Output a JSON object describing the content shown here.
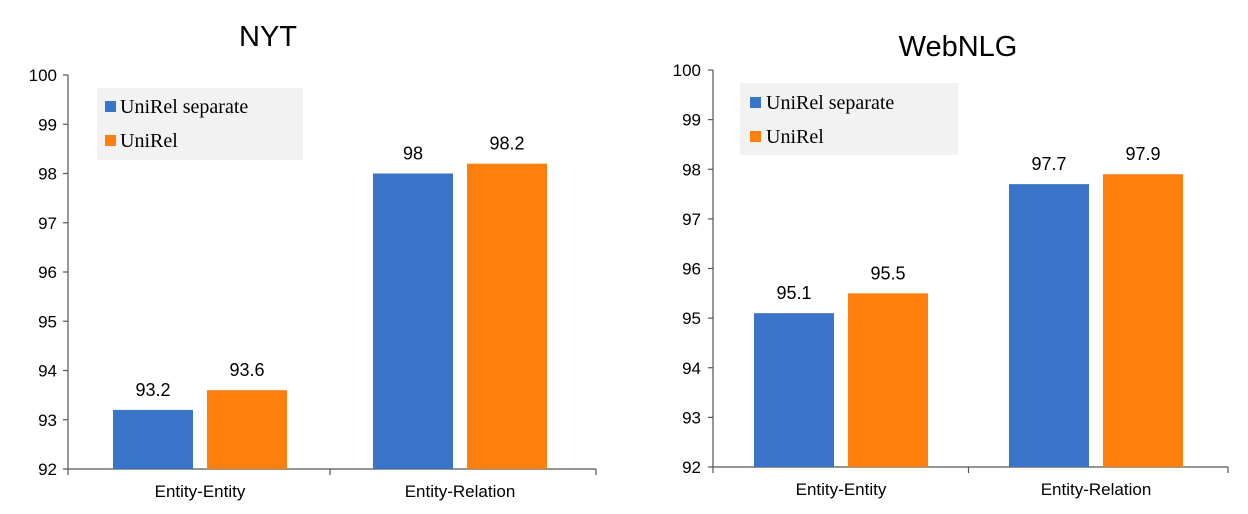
{
  "chart_data": [
    {
      "type": "bar",
      "title": "NYT",
      "categories": [
        "Entity-Entity",
        "Entity-Relation"
      ],
      "series": [
        {
          "name": "UniRel separate",
          "color": "#3a74c9",
          "values": [
            93.2,
            98
          ]
        },
        {
          "name": "UniRel",
          "color": "#ff7f0e",
          "values": [
            93.6,
            98.2
          ]
        }
      ],
      "data_labels": [
        [
          "93.2",
          "98"
        ],
        [
          "93.6",
          "98.2"
        ]
      ],
      "ylim": [
        92,
        100
      ],
      "yticks": [
        "92",
        "93",
        "94",
        "95",
        "96",
        "97",
        "98",
        "99",
        "100"
      ],
      "legend": "top-left",
      "grid": false
    },
    {
      "type": "bar",
      "title": "WebNLG",
      "categories": [
        "Entity-Entity",
        "Entity-Relation"
      ],
      "series": [
        {
          "name": "UniRel separate",
          "color": "#3a74c9",
          "values": [
            95.1,
            97.7
          ]
        },
        {
          "name": "UniRel",
          "color": "#ff7f0e",
          "values": [
            95.5,
            97.9
          ]
        }
      ],
      "data_labels": [
        [
          "95.1",
          "97.7"
        ],
        [
          "95.5",
          "97.9"
        ]
      ],
      "ylim": [
        92,
        100
      ],
      "yticks": [
        "92",
        "93",
        "94",
        "95",
        "96",
        "97",
        "98",
        "99",
        "100"
      ],
      "legend": "top-left",
      "grid": false
    }
  ]
}
